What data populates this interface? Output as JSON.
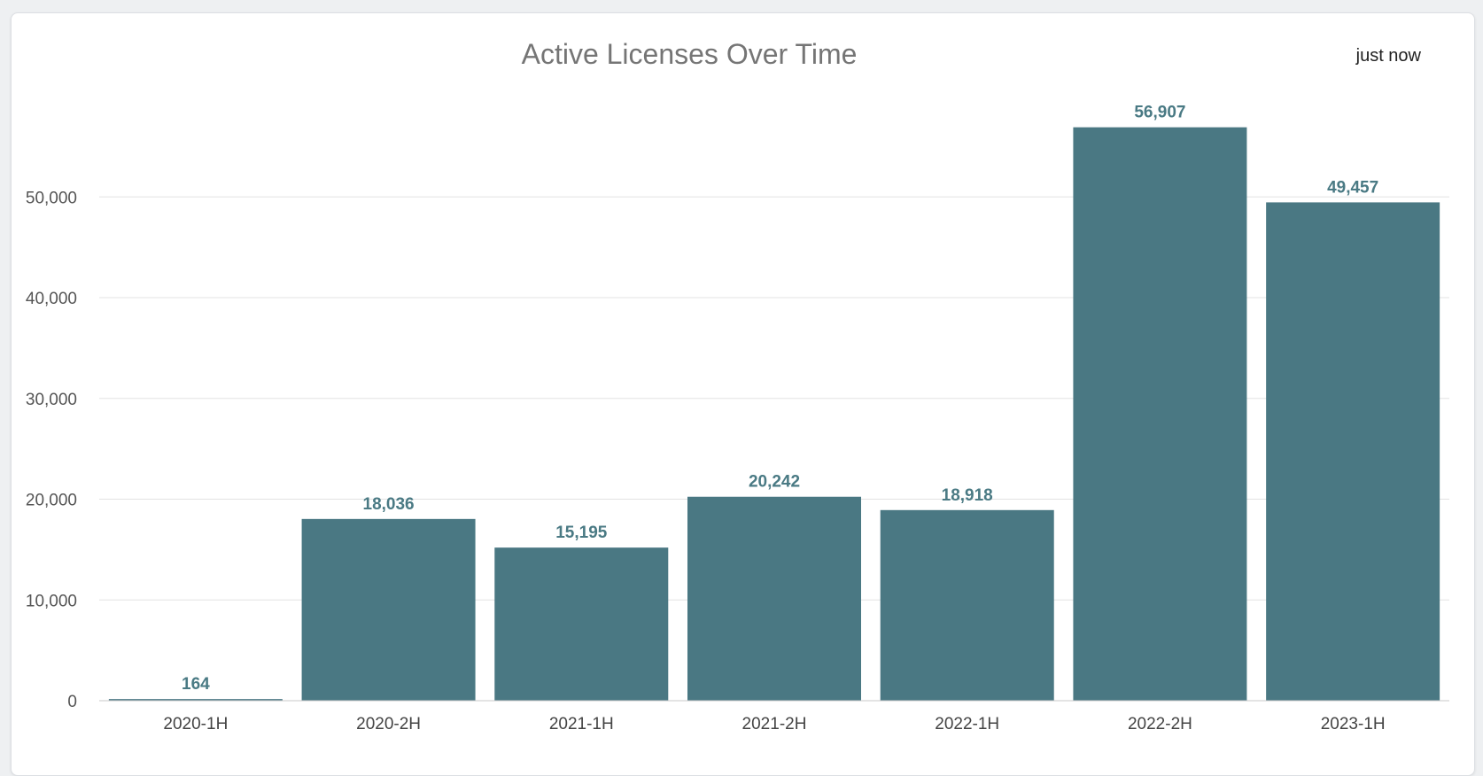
{
  "header": {
    "title": "Active Licenses Over Time",
    "timestamp": "just now"
  },
  "colors": {
    "bar": "#4a7883",
    "value_label": "#4a7a84",
    "grid": "#e3e3e3",
    "axis": "#c8c8c8"
  },
  "chart_data": {
    "type": "bar",
    "title": "Active Licenses Over Time",
    "xlabel": "",
    "ylabel": "",
    "categories": [
      "2020-1H",
      "2020-2H",
      "2021-1H",
      "2021-2H",
      "2022-1H",
      "2022-2H",
      "2023-1H"
    ],
    "values": [
      164,
      18036,
      15195,
      20242,
      18918,
      56907,
      49457
    ],
    "value_labels": [
      "164",
      "18,036",
      "15,195",
      "20,242",
      "18,918",
      "56,907",
      "49,457"
    ],
    "yticks": [
      0,
      10000,
      20000,
      30000,
      40000,
      50000
    ],
    "ytick_labels": [
      "0",
      "10,000",
      "20,000",
      "30,000",
      "40,000",
      "50,000"
    ],
    "ylim": [
      0,
      56907
    ],
    "grid": true,
    "legend": "none"
  }
}
